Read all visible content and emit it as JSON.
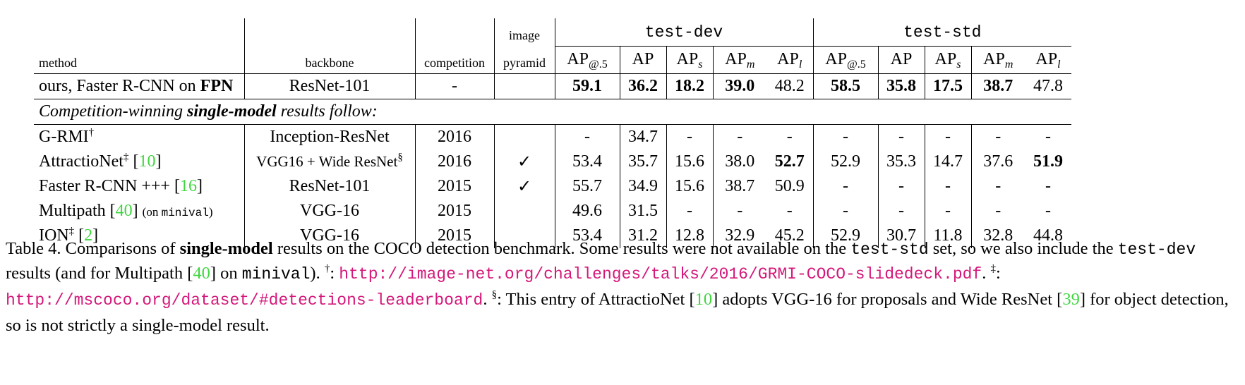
{
  "table": {
    "header": {
      "method": "method",
      "backbone": "backbone",
      "competition": "competition",
      "image_pyramid_line1": "image",
      "image_pyramid_line2": "pyramid",
      "group_dev": "test-dev",
      "group_std": "test-std",
      "ap_metrics": [
        {
          "base": "AP",
          "sub": "@.5"
        },
        {
          "base": "AP",
          "sub": ""
        },
        {
          "base": "AP",
          "sub": "s"
        },
        {
          "base": "AP",
          "sub": "m"
        },
        {
          "base": "AP",
          "sub": "l"
        }
      ]
    },
    "ours": {
      "method_prefix": "ours, Faster R-CNN on ",
      "method_bold": "FPN",
      "backbone": "ResNet-101",
      "competition": "-",
      "pyramid": "",
      "dev": [
        "59.1",
        "36.2",
        "18.2",
        "39.0",
        "48.2"
      ],
      "std": [
        "58.5",
        "35.8",
        "17.5",
        "38.7",
        "47.8"
      ]
    },
    "section": {
      "pre": "Competition-winning ",
      "bold": "single-model",
      "post": " results follow:"
    },
    "rows": [
      {
        "name": "G-RMI",
        "mark": "†",
        "ref": "",
        "note": "",
        "note_mono": "",
        "note_close": "",
        "backbone": "Inception-ResNet",
        "backbone_mark": "",
        "competition": "2016",
        "pyramid": "",
        "dev": [
          "-",
          "34.7",
          "-",
          "-",
          "-"
        ],
        "std": [
          "-",
          "-",
          "-",
          "-",
          "-"
        ]
      },
      {
        "name": "AttractioNet",
        "mark": "‡",
        "ref": "10",
        "note": "",
        "note_mono": "",
        "note_close": "",
        "backbone": "VGG16 + Wide ResNet",
        "backbone_mark": "§",
        "competition": "2016",
        "pyramid": "✓",
        "dev": [
          "53.4",
          "35.7",
          "15.6",
          "38.0",
          "52.7"
        ],
        "std": [
          "52.9",
          "35.3",
          "14.7",
          "37.6",
          "51.9"
        ]
      },
      {
        "name": "Faster R-CNN +++",
        "mark": "",
        "ref": "16",
        "note": "",
        "note_mono": "",
        "note_close": "",
        "backbone": "ResNet-101",
        "backbone_mark": "",
        "competition": "2015",
        "pyramid": "✓",
        "dev": [
          "55.7",
          "34.9",
          "15.6",
          "38.7",
          "50.9"
        ],
        "std": [
          "-",
          "-",
          "-",
          "-",
          "-"
        ]
      },
      {
        "name": "Multipath",
        "mark": "",
        "ref": "40",
        "note": "(on ",
        "note_mono": "minival",
        "note_close": ")",
        "backbone": "VGG-16",
        "backbone_mark": "",
        "competition": "2015",
        "pyramid": "",
        "dev": [
          "49.6",
          "31.5",
          "-",
          "-",
          "-"
        ],
        "std": [
          "-",
          "-",
          "-",
          "-",
          "-"
        ]
      },
      {
        "name": "ION",
        "mark": "‡",
        "ref": "2",
        "note": "",
        "note_mono": "",
        "note_close": "",
        "backbone": "VGG-16",
        "backbone_mark": "",
        "competition": "2015",
        "pyramid": "",
        "dev": [
          "53.4",
          "31.2",
          "12.8",
          "32.9",
          "45.2"
        ],
        "std": [
          "52.9",
          "30.7",
          "11.8",
          "32.8",
          "44.8"
        ]
      }
    ]
  },
  "caption": {
    "label": "Table 4. Comparisons of ",
    "bold": "single-model",
    "t1": " results on the COCO detection benchmark.  Some results were not available on the ",
    "m1": "test-std",
    "t2": " set, so we also include the ",
    "m2": "test-dev",
    "t3": " results (and for Multipath [",
    "ref40": "40",
    "t4": "] on ",
    "m3": "minival",
    "t5": ").  ",
    "dagger": "†",
    "colon1": ": ",
    "url1": "http://image-net.org/challenges/talks/2016/GRMI-COCO-slidedeck.pdf",
    "t6": ".  ",
    "ddagger": "‡",
    "colon2": ": ",
    "url2": "http://mscoco.org/dataset/#detections-leaderboard",
    "t7": ".  ",
    "section_mark": "§",
    "t8": ": This entry of AttractioNet [",
    "ref10": "10",
    "t9": "] adopts VGG-16 for proposals and Wide ResNet [",
    "ref39": "39",
    "t10": "] for object detection, so is not strictly a single-model result."
  }
}
